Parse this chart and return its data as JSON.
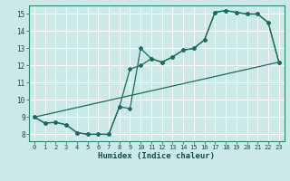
{
  "xlabel": "Humidex (Indice chaleur)",
  "bg_color": "#cde8e8",
  "grid_color": "#ffffff",
  "line_color": "#1a6b60",
  "xlim": [
    -0.5,
    23.5
  ],
  "ylim": [
    7.6,
    15.5
  ],
  "xticks": [
    0,
    1,
    2,
    3,
    4,
    5,
    6,
    7,
    8,
    9,
    10,
    11,
    12,
    13,
    14,
    15,
    16,
    17,
    18,
    19,
    20,
    21,
    22,
    23
  ],
  "yticks": [
    8,
    9,
    10,
    11,
    12,
    13,
    14,
    15
  ],
  "line1_x": [
    0,
    1,
    2,
    3,
    4,
    5,
    6,
    7,
    8,
    9,
    10,
    11,
    12,
    13,
    14,
    15,
    16,
    17,
    18,
    19,
    20,
    21,
    22,
    23
  ],
  "line1_y": [
    9.0,
    8.65,
    8.7,
    8.55,
    8.1,
    8.0,
    8.0,
    8.0,
    9.6,
    9.5,
    13.0,
    12.4,
    12.2,
    12.5,
    12.9,
    13.0,
    13.5,
    15.1,
    15.2,
    15.1,
    15.0,
    15.0,
    14.5,
    12.2
  ],
  "line2_x": [
    0,
    1,
    2,
    3,
    4,
    5,
    6,
    7,
    8,
    9,
    10,
    11,
    12,
    13,
    14,
    15,
    16,
    17,
    18,
    19,
    20,
    21,
    22,
    23
  ],
  "line2_y": [
    9.0,
    8.65,
    8.7,
    8.55,
    8.1,
    8.0,
    8.0,
    8.0,
    9.6,
    11.8,
    12.0,
    12.4,
    12.2,
    12.5,
    12.9,
    13.0,
    13.5,
    15.1,
    15.2,
    15.1,
    15.0,
    15.0,
    14.5,
    12.2
  ],
  "line3_x": [
    0,
    23
  ],
  "line3_y": [
    9.0,
    12.2
  ]
}
